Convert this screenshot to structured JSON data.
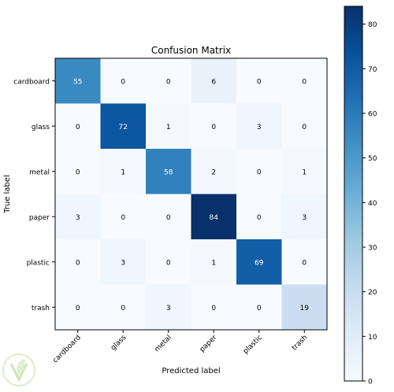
{
  "chart_data": {
    "type": "heatmap",
    "title": "Confusion Matrix",
    "xlabel": "Predicted label",
    "ylabel": "True label",
    "x_categories": [
      "cardboard",
      "glass",
      "metal",
      "paper",
      "plastic",
      "trash"
    ],
    "y_categories": [
      "cardboard",
      "glass",
      "metal",
      "paper",
      "plastic",
      "trash"
    ],
    "values": [
      [
        55,
        0,
        0,
        6,
        0,
        0
      ],
      [
        0,
        72,
        1,
        0,
        3,
        0
      ],
      [
        0,
        1,
        58,
        2,
        0,
        1
      ],
      [
        3,
        0,
        0,
        84,
        0,
        3
      ],
      [
        0,
        3,
        0,
        1,
        69,
        0
      ],
      [
        0,
        0,
        3,
        0,
        0,
        19
      ]
    ],
    "colormap": "Blues",
    "colorbar": {
      "range": [
        0,
        84
      ],
      "ticks": [
        0,
        10,
        20,
        30,
        40,
        50,
        60,
        70,
        80
      ]
    }
  }
}
